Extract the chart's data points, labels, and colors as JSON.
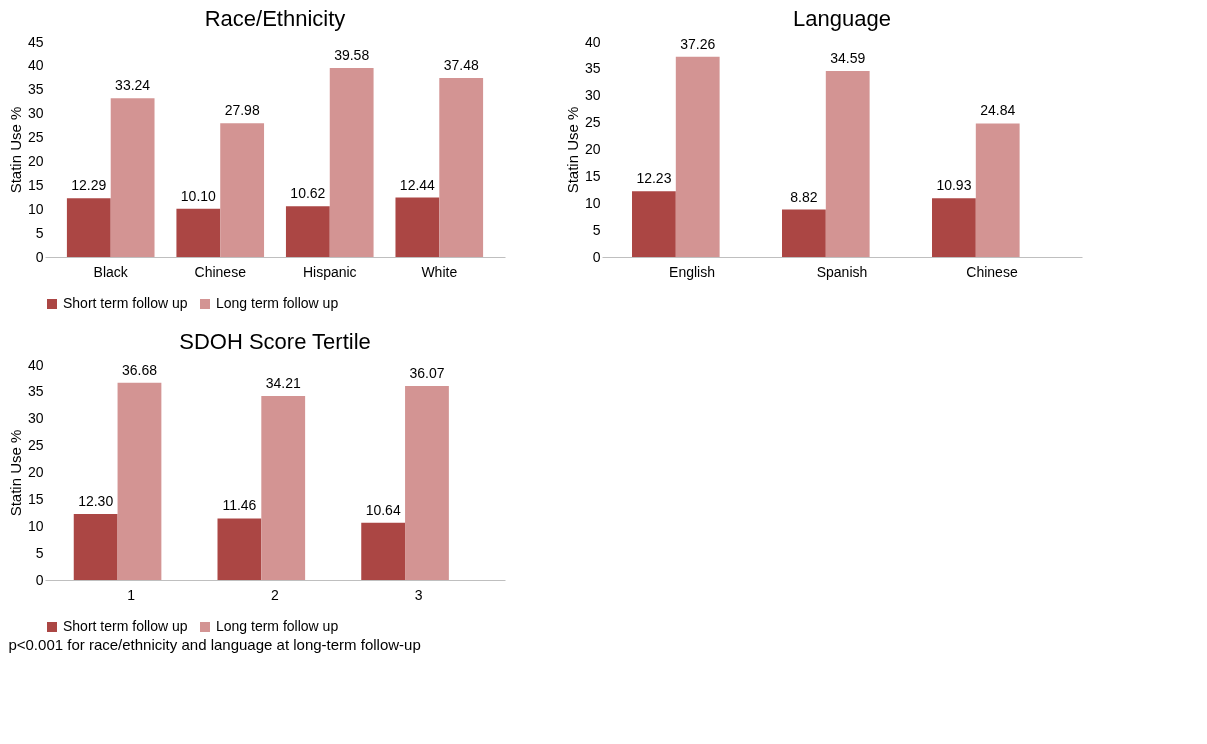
{
  "chart_data": [
    {
      "type": "bar",
      "title": "Race/Ethnicity",
      "ylabel": "Statin Use %",
      "categories": [
        "Black",
        "Chinese",
        "Hispanic",
        "White"
      ],
      "ylim": [
        0,
        45
      ],
      "yticks": [
        0,
        5,
        10,
        15,
        20,
        25,
        30,
        35,
        40,
        45
      ],
      "grid": false,
      "legend": "bottom",
      "series": [
        {
          "name": "Short term follow up",
          "color": "#ab4644",
          "values": [
            12.29,
            10.1,
            10.62,
            12.44
          ],
          "value_labels": [
            "12.29",
            "10.10",
            "10.62",
            "12.44"
          ]
        },
        {
          "name": "Long term follow up",
          "color": "#d39493",
          "values": [
            33.24,
            27.98,
            39.58,
            37.48
          ],
          "value_labels": [
            "33.24",
            "27.98",
            "39.58",
            "37.48"
          ]
        }
      ]
    },
    {
      "type": "bar",
      "title": "Language",
      "ylabel": "Statin Use %",
      "categories": [
        "English",
        "Spanish",
        "Chinese"
      ],
      "ylim": [
        0,
        40
      ],
      "yticks": [
        0,
        5,
        10,
        15,
        20,
        25,
        30,
        35,
        40
      ],
      "grid": false,
      "legend": "bottom",
      "series": [
        {
          "name": "Short term follow up",
          "color": "#ab4644",
          "values": [
            12.23,
            8.82,
            10.93
          ],
          "value_labels": [
            "12.23",
            "8.82",
            "10.93"
          ]
        },
        {
          "name": "Long term follow up",
          "color": "#d39493",
          "values": [
            37.26,
            34.59,
            24.84
          ],
          "value_labels": [
            "37.26",
            "34.59",
            "24.84"
          ]
        }
      ]
    },
    {
      "type": "bar",
      "title": "SDOH Score Tertile",
      "ylabel": "Statin Use %",
      "categories": [
        "1",
        "2",
        "3"
      ],
      "ylim": [
        0,
        40
      ],
      "yticks": [
        0,
        5,
        10,
        15,
        20,
        25,
        30,
        35,
        40
      ],
      "grid": false,
      "legend": "bottom",
      "annotations": [
        "p<0.001 for race/ethnicity and language at long-term follow-up"
      ],
      "series": [
        {
          "name": "Short term follow up",
          "color": "#ab4644",
          "values": [
            12.3,
            11.46,
            10.64
          ],
          "value_labels": [
            "12.30",
            "11.46",
            "10.64"
          ]
        },
        {
          "name": "Long term follow up",
          "color": "#d39493",
          "values": [
            36.68,
            34.21,
            36.07
          ],
          "value_labels": [
            "36.68",
            "34.21",
            "36.07"
          ]
        }
      ]
    }
  ]
}
